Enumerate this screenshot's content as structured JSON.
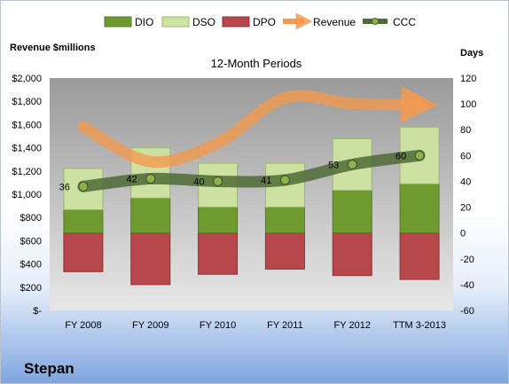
{
  "company": "Stepan",
  "chart_data": {
    "type": "bar",
    "title": "12-Month Periods",
    "left_axis_title": "Revenue $millions",
    "right_axis_title": "Days",
    "categories": [
      "FY 2008",
      "FY 2009",
      "FY 2010",
      "FY 2011",
      "FY 2012",
      "TTM 3-2013"
    ],
    "left_ticks": [
      "$2,000",
      "$1,800",
      "$1,600",
      "$1,400",
      "$1,200",
      "$1,000",
      "$800",
      "$600",
      "$400",
      "$200",
      "$-"
    ],
    "right_ticks": [
      "120",
      "100",
      "80",
      "60",
      "40",
      "20",
      "0",
      "-20",
      "-40",
      "-60"
    ],
    "left_ylim": [
      0,
      2000
    ],
    "right_ylim": [
      -60,
      120
    ],
    "legend_position": "top",
    "series": [
      {
        "name": "DIO",
        "type": "stacked-bar",
        "color": "#6f9a30",
        "values": [
          18,
          27,
          20,
          20,
          33,
          38
        ]
      },
      {
        "name": "DSO",
        "type": "stacked-bar",
        "color": "#cde3a1",
        "values": [
          32,
          39,
          34,
          34,
          40,
          44
        ]
      },
      {
        "name": "DPO",
        "type": "bar-below-zero",
        "color": "#b8474b",
        "values": [
          -30,
          -40,
          -32,
          -28,
          -33,
          -36
        ]
      },
      {
        "name": "Revenue",
        "type": "line",
        "color": "#f39a4f",
        "values": [
          1580,
          1280,
          1440,
          1830,
          1780,
          1770
        ]
      },
      {
        "name": "CCC",
        "type": "line",
        "color": "#4f6a36",
        "values": [
          36,
          42,
          40,
          41,
          53,
          60
        ]
      }
    ],
    "ccc_labels": [
      "36",
      "42",
      "40",
      "41",
      "53",
      "60"
    ]
  }
}
